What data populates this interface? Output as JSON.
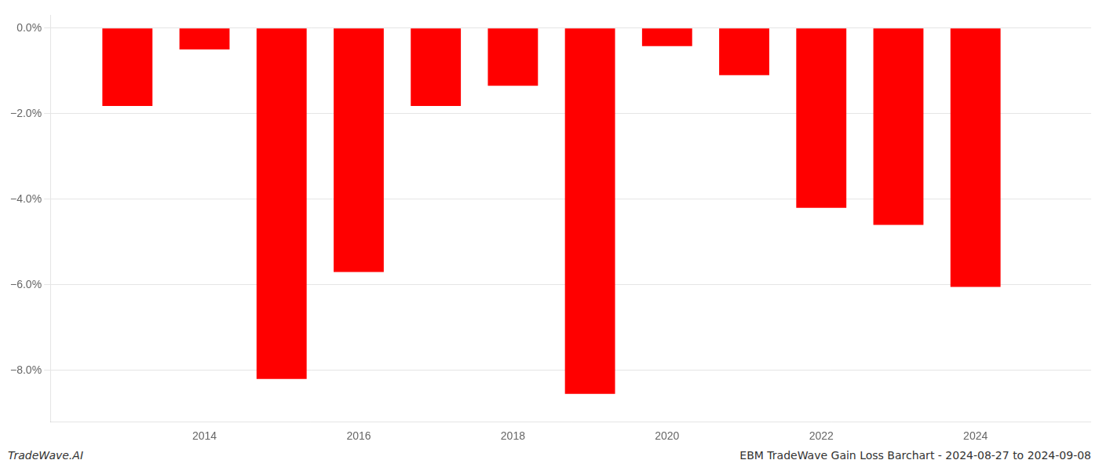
{
  "chart_data": {
    "type": "bar",
    "x": [
      2013,
      2014,
      2015,
      2016,
      2017,
      2018,
      2019,
      2020,
      2021,
      2022,
      2023,
      2024
    ],
    "values": [
      -1.82,
      -0.5,
      -8.2,
      -5.7,
      -1.82,
      -1.35,
      -8.55,
      -0.42,
      -1.1,
      -4.2,
      -4.6,
      -6.05
    ],
    "color": "#ff0000",
    "xlim": [
      2012.0,
      2025.5
    ],
    "xticks": [
      2014,
      2016,
      2018,
      2020,
      2022,
      2024
    ],
    "ylim": [
      -9.2,
      0.3
    ],
    "yticks": [
      {
        "value": 0.0,
        "label": "0.0%"
      },
      {
        "value": -2.0,
        "label": "−2.0%"
      },
      {
        "value": -4.0,
        "label": "−4.0%"
      },
      {
        "value": -6.0,
        "label": "−6.0%"
      },
      {
        "value": -8.0,
        "label": "−8.0%"
      }
    ],
    "grid": "y",
    "annotations": [
      "TradeWave.AI",
      "EBM TradeWave Gain Loss Barchart - 2024-08-27 to 2024-09-08"
    ]
  }
}
